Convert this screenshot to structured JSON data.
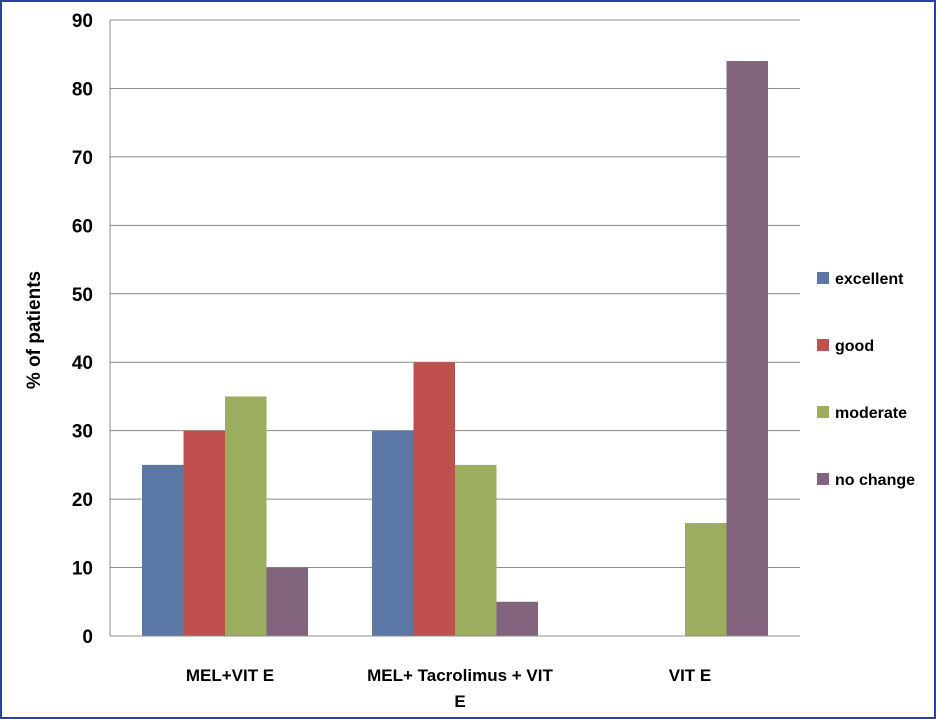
{
  "chart_data": {
    "type": "bar",
    "title": "",
    "xlabel": "",
    "ylabel": "% of patients",
    "ylim": [
      0,
      90
    ],
    "yticks": [
      0,
      10,
      20,
      30,
      40,
      50,
      60,
      70,
      80,
      90
    ],
    "grid": true,
    "legend": "right",
    "categories": [
      "MEL+VIT E",
      "MEL+ Tacrolimus + VIT E",
      "VIT E"
    ],
    "series": [
      {
        "name": "excellent",
        "color": "#5b77a5",
        "values": [
          25,
          30,
          0
        ]
      },
      {
        "name": "good",
        "color": "#c0504d",
        "values": [
          30,
          40,
          0
        ]
      },
      {
        "name": "moderate",
        "color": "#9bad5f",
        "values": [
          35,
          25,
          16.5
        ]
      },
      {
        "name": "no change",
        "color": "#82647f",
        "values": [
          10,
          5,
          84
        ]
      }
    ]
  },
  "frame_color": "#2a3ea8"
}
